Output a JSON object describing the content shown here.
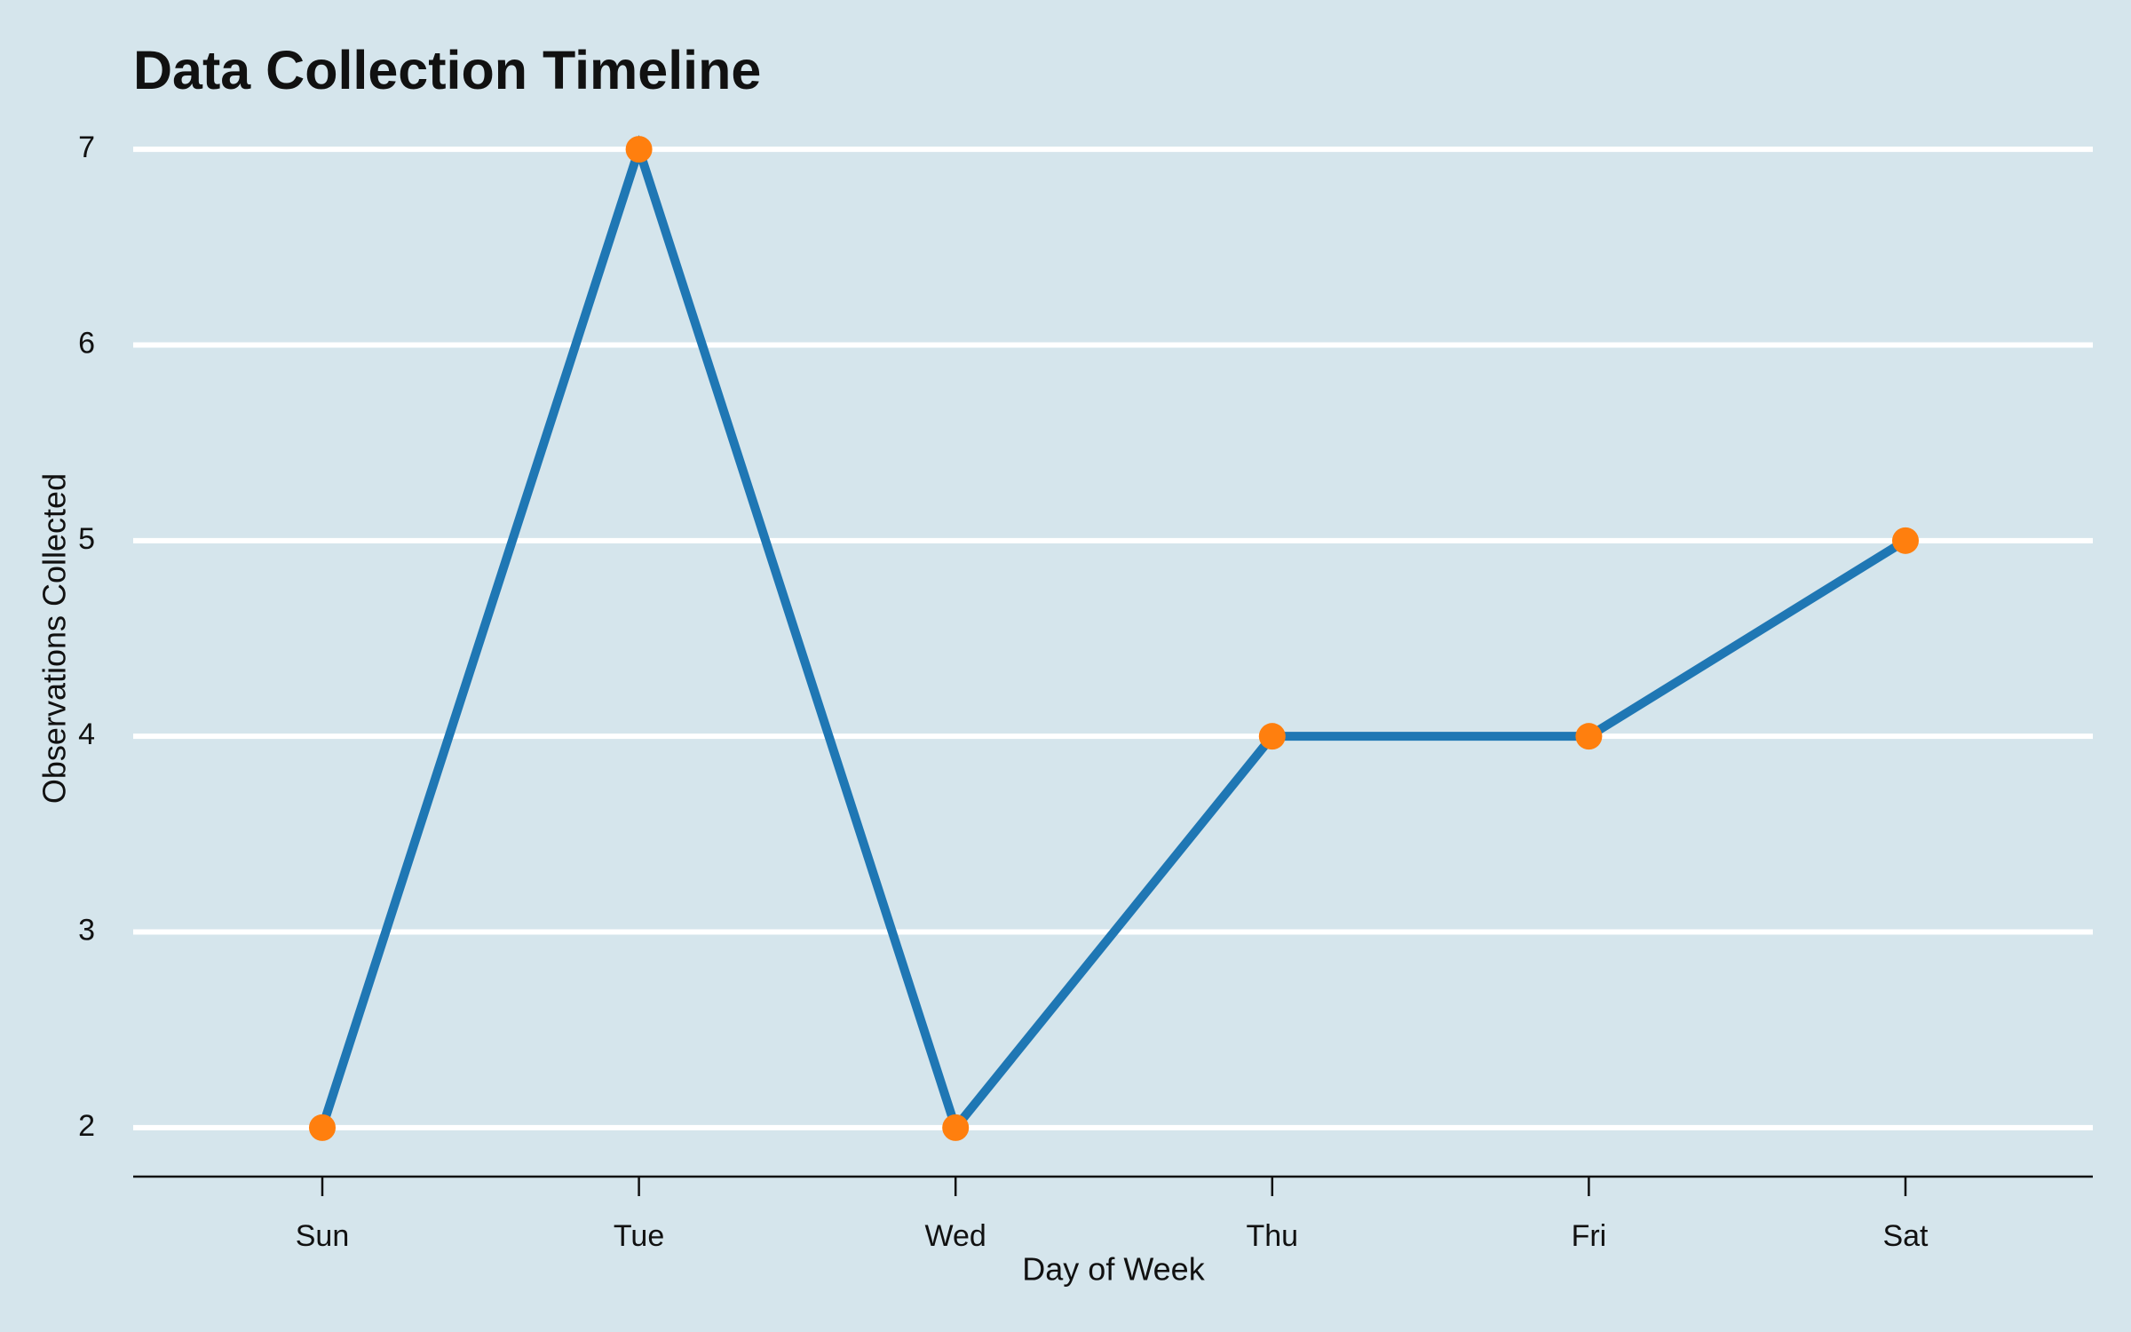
{
  "chart_data": {
    "type": "line",
    "title": "Data Collection Timeline",
    "x_label": "Day of Week",
    "y_label": "Observations Collected",
    "categories": [
      "Sun",
      "Tue",
      "Wed",
      "Thu",
      "Fri",
      "Sat"
    ],
    "values": [
      2,
      7,
      2,
      4,
      4,
      5
    ],
    "color": "#1f77b4",
    "marker_color": "#ff7f0e",
    "ylim": [
      1.75,
      7.25
    ],
    "yticks": [
      2,
      3,
      4,
      5,
      6,
      7
    ],
    "grid": true
  }
}
